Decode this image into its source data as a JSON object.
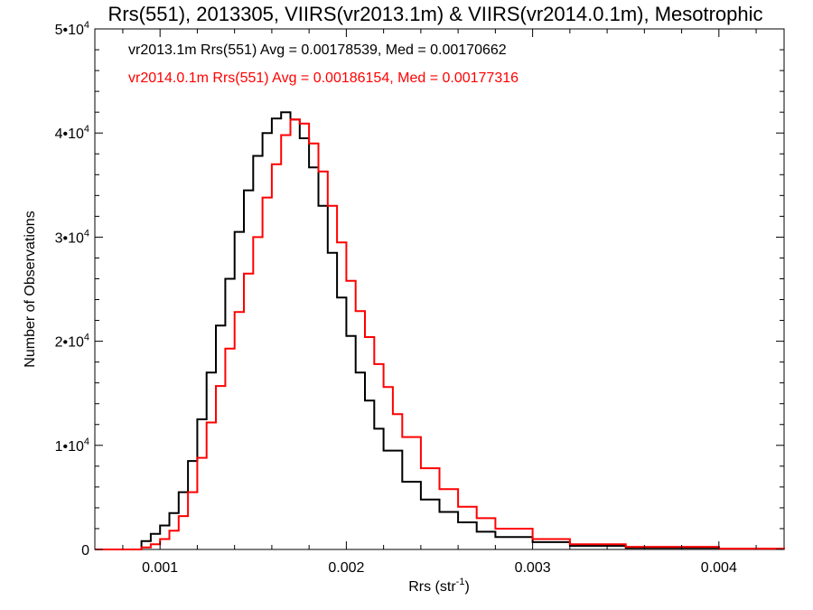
{
  "chart_data": {
    "type": "line",
    "title": "Rrs(551), 2013305, VIIRS(vr2013.1m) & VIIRS(vr2014.0.1m), Mesotrophic",
    "xlabel": "Rrs (str",
    "xlabel_sup": "-1",
    "xlabel_suffix": ")",
    "ylabel": "Number of Observations",
    "xlim": [
      0.00065,
      0.00435
    ],
    "ylim": [
      0,
      50000
    ],
    "x_ticks": [
      {
        "value": 0.001,
        "label": "0.001"
      },
      {
        "value": 0.002,
        "label": "0.002"
      },
      {
        "value": 0.003,
        "label": "0.003"
      },
      {
        "value": 0.004,
        "label": "0.004"
      }
    ],
    "y_ticks": [
      {
        "value": 0,
        "base": "0",
        "exp": ""
      },
      {
        "value": 10000,
        "base": "1•10",
        "exp": "4"
      },
      {
        "value": 20000,
        "base": "2•10",
        "exp": "4"
      },
      {
        "value": 30000,
        "base": "3•10",
        "exp": "4"
      },
      {
        "value": 40000,
        "base": "4•10",
        "exp": "4"
      },
      {
        "value": 50000,
        "base": "5•10",
        "exp": "4"
      }
    ],
    "annotations": [
      {
        "text": "vr2013.1m Rrs(551) Avg = 0.00178539, Med = 0.00170662",
        "color": "#000000"
      },
      {
        "text": "vr2014.0.1m Rrs(551) Avg = 0.00186154, Med = 0.00177316",
        "color": "#ff0000"
      }
    ],
    "series": [
      {
        "color": "#000000",
        "points": [
          [
            0.00065,
            0
          ],
          [
            0.0008,
            0
          ],
          [
            0.0009,
            800
          ],
          [
            0.00095,
            1500
          ],
          [
            0.001,
            2300
          ],
          [
            0.00105,
            3500
          ],
          [
            0.0011,
            5500
          ],
          [
            0.00115,
            8500
          ],
          [
            0.0012,
            12500
          ],
          [
            0.00125,
            17000
          ],
          [
            0.0013,
            21500
          ],
          [
            0.00135,
            26000
          ],
          [
            0.0014,
            30500
          ],
          [
            0.00145,
            34500
          ],
          [
            0.0015,
            37800
          ],
          [
            0.00155,
            40000
          ],
          [
            0.0016,
            41400
          ],
          [
            0.00165,
            42000
          ],
          [
            0.0017,
            41300
          ],
          [
            0.00175,
            39500
          ],
          [
            0.0018,
            36700
          ],
          [
            0.00185,
            33000
          ],
          [
            0.0019,
            28500
          ],
          [
            0.00195,
            24200
          ],
          [
            0.002,
            20500
          ],
          [
            0.00205,
            17000
          ],
          [
            0.0021,
            14300
          ],
          [
            0.00215,
            11600
          ],
          [
            0.0022,
            9500
          ],
          [
            0.0023,
            6500
          ],
          [
            0.0024,
            4800
          ],
          [
            0.0025,
            3600
          ],
          [
            0.0026,
            2600
          ],
          [
            0.0027,
            1700
          ],
          [
            0.0028,
            1200
          ],
          [
            0.003,
            700
          ],
          [
            0.0032,
            350
          ],
          [
            0.0035,
            150
          ],
          [
            0.004,
            50
          ],
          [
            0.00435,
            20
          ]
        ]
      },
      {
        "color": "#ff0000",
        "points": [
          [
            0.00065,
            0
          ],
          [
            0.00085,
            0
          ],
          [
            0.0009,
            200
          ],
          [
            0.00095,
            500
          ],
          [
            0.001,
            1000
          ],
          [
            0.00105,
            1800
          ],
          [
            0.0011,
            3200
          ],
          [
            0.00115,
            5500
          ],
          [
            0.0012,
            8800
          ],
          [
            0.00125,
            12200
          ],
          [
            0.0013,
            15700
          ],
          [
            0.00135,
            19300
          ],
          [
            0.0014,
            22800
          ],
          [
            0.00145,
            26500
          ],
          [
            0.0015,
            30000
          ],
          [
            0.00155,
            33800
          ],
          [
            0.0016,
            37000
          ],
          [
            0.00165,
            39800
          ],
          [
            0.0017,
            41300
          ],
          [
            0.00175,
            40900
          ],
          [
            0.0018,
            39000
          ],
          [
            0.00185,
            36300
          ],
          [
            0.0019,
            33000
          ],
          [
            0.00195,
            29500
          ],
          [
            0.002,
            25800
          ],
          [
            0.00205,
            22900
          ],
          [
            0.0021,
            20400
          ],
          [
            0.00215,
            17800
          ],
          [
            0.0022,
            15600
          ],
          [
            0.00225,
            13000
          ],
          [
            0.0023,
            10800
          ],
          [
            0.0024,
            7800
          ],
          [
            0.0025,
            5800
          ],
          [
            0.0026,
            4100
          ],
          [
            0.0027,
            3000
          ],
          [
            0.0028,
            2000
          ],
          [
            0.003,
            1000
          ],
          [
            0.0032,
            500
          ],
          [
            0.0035,
            250
          ],
          [
            0.004,
            80
          ],
          [
            0.00435,
            20
          ]
        ]
      }
    ]
  }
}
